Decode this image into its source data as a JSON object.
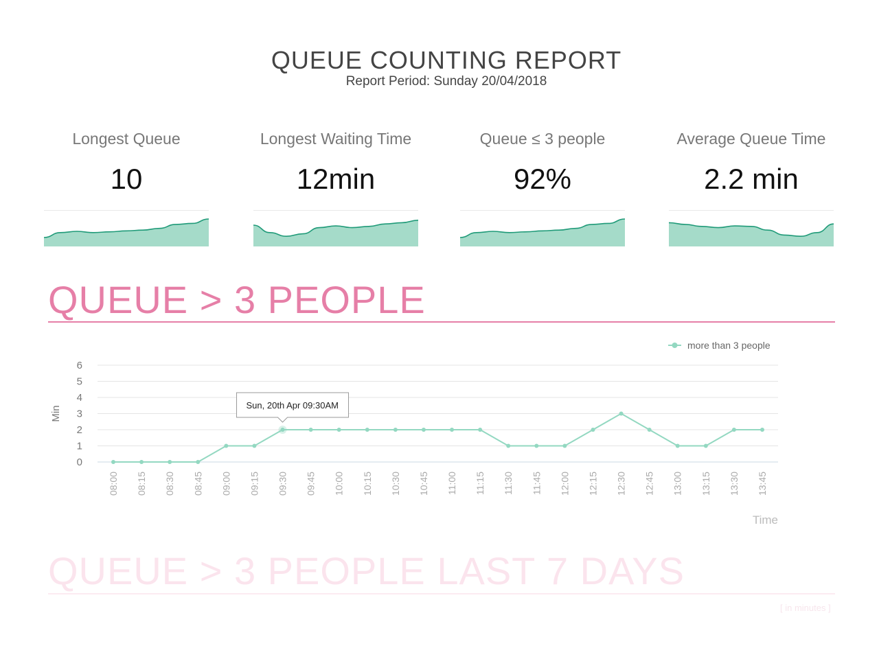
{
  "header": {
    "title": "QUEUE COUNTING REPORT",
    "period": "Report Period: Sunday 20/04/2018"
  },
  "kpis": [
    {
      "label": "Longest Queue",
      "value": "10",
      "trend": [
        0.25,
        0.45,
        0.5,
        0.45,
        0.48,
        0.52,
        0.55,
        0.62,
        0.78,
        0.82,
        1.0
      ]
    },
    {
      "label": "Longest Waiting Time",
      "value": "12min",
      "trend": [
        0.75,
        0.45,
        0.3,
        0.4,
        0.65,
        0.72,
        0.65,
        0.7,
        0.8,
        0.85,
        0.95
      ]
    },
    {
      "label": "Queue ≤ 3 people",
      "value": "92%",
      "trend": [
        0.25,
        0.45,
        0.5,
        0.45,
        0.48,
        0.52,
        0.55,
        0.62,
        0.78,
        0.82,
        1.0
      ]
    },
    {
      "label": "Average Queue Time",
      "value": "2.2 min",
      "trend": [
        0.85,
        0.78,
        0.7,
        0.65,
        0.72,
        0.7,
        0.55,
        0.35,
        0.3,
        0.45,
        0.8
      ]
    }
  ],
  "sections": {
    "queue_title": "QUEUE > 3 PEOPLE",
    "last7_title": "QUEUE > 3 PEOPLE LAST 7 DAYS",
    "units_note": "[ in minutes ]"
  },
  "colors": {
    "accent_pink": "#e67fa7",
    "faded_pink": "#fbe4ed",
    "teal_fill": "#a5dbc9",
    "teal_line": "#1f9a78",
    "series": "#93d8c1"
  },
  "tooltip": "Sun, 20th Apr 09:30AM",
  "chart_data": {
    "type": "line",
    "categories": [
      "08:00",
      "08:15",
      "08:30",
      "08:45",
      "09:00",
      "09:15",
      "09:30",
      "09:45",
      "10:00",
      "10:15",
      "10:30",
      "10:45",
      "11:00",
      "11:15",
      "11:30",
      "11:45",
      "12:00",
      "12:15",
      "12:30",
      "12:45",
      "13:00",
      "13:15",
      "13:30",
      "13:45"
    ],
    "series": [
      {
        "name": "more than 3 people",
        "values": [
          0,
          0,
          0,
          0,
          1,
          1,
          2,
          2,
          2,
          2,
          2,
          2,
          2,
          2,
          1,
          1,
          1,
          2,
          3,
          2,
          1,
          1,
          2,
          2
        ]
      }
    ],
    "xlabel": "Time",
    "ylabel": "Min",
    "ylim": [
      0,
      6
    ],
    "yticks": [
      0,
      1,
      2,
      3,
      4,
      5,
      6
    ],
    "grid": true,
    "legend": "top-right",
    "highlight_index": 6
  }
}
